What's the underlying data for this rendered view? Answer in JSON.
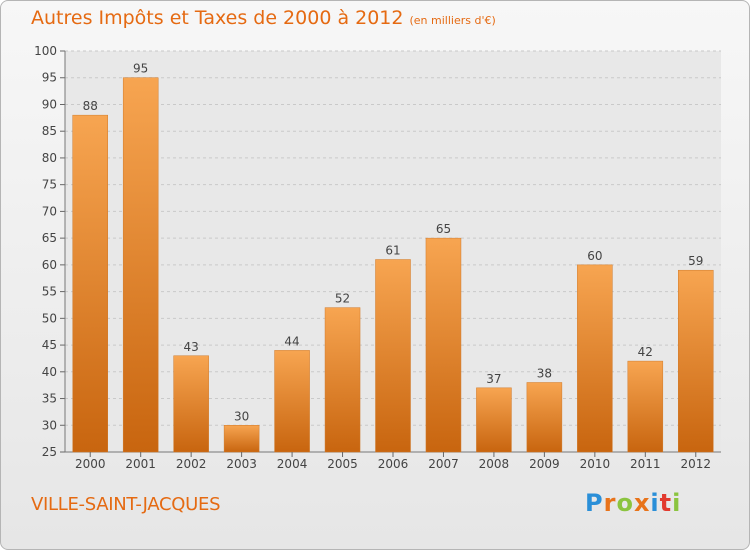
{
  "header": {
    "title": "Autres Impôts et Taxes de 2000 à 2012",
    "unit": "(en milliers d'€)"
  },
  "footer": {
    "place": "VILLE-SAINT-JACQUES",
    "logo": "Proxiti"
  },
  "colors": {
    "accent": "#e56a12",
    "bar_light": "#f7a551",
    "bar_dark": "#c8650f",
    "logo_letters": [
      "#2a8fd8",
      "#e8731a",
      "#8bc43f",
      "#e8731a",
      "#2a8fd8",
      "#e23a2e",
      "#8bc43f"
    ]
  },
  "chart_data": {
    "type": "bar",
    "categories": [
      "2000",
      "2001",
      "2002",
      "2003",
      "2004",
      "2005",
      "2006",
      "2007",
      "2008",
      "2009",
      "2010",
      "2011",
      "2012"
    ],
    "values": [
      88,
      95,
      43,
      30,
      44,
      52,
      61,
      65,
      37,
      38,
      60,
      42,
      59
    ],
    "ylim": [
      25,
      100
    ],
    "yticks": [
      25,
      30,
      35,
      40,
      45,
      50,
      55,
      60,
      65,
      70,
      75,
      80,
      85,
      90,
      95,
      100
    ],
    "grid": true,
    "data_labels": true
  }
}
